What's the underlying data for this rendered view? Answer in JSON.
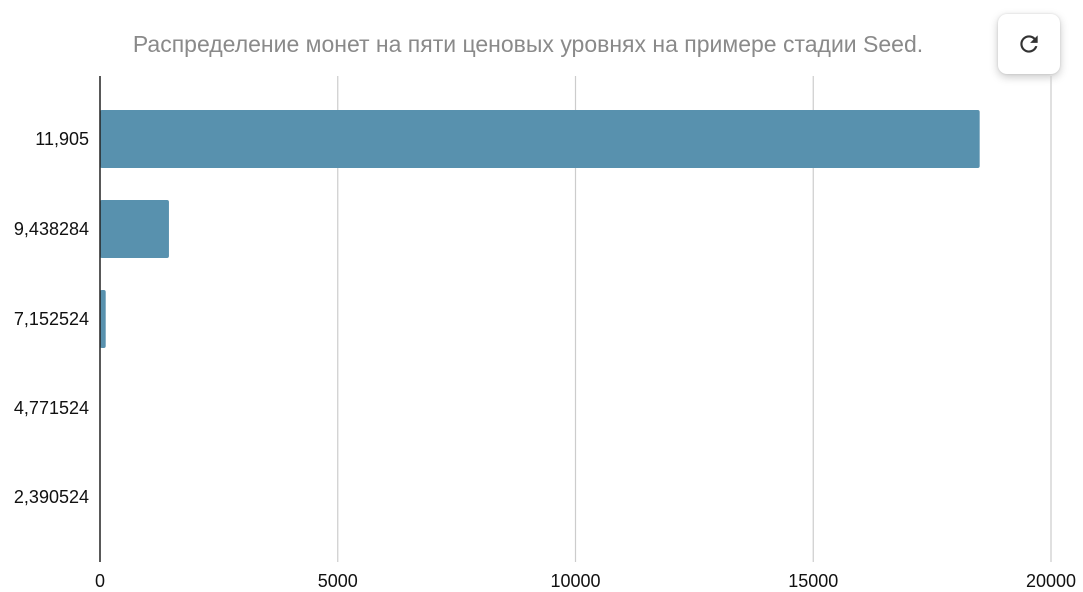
{
  "chart_data": {
    "type": "bar",
    "orientation": "horizontal",
    "title": "Распределение монет на пяти ценовых уровнях на примере стадии Seed.",
    "xlabel": "",
    "ylabel": "",
    "categories": [
      "11,905",
      "9,438284",
      "7,152524",
      "4,771524",
      "2,390524"
    ],
    "values": [
      18500,
      1450,
      120,
      0,
      0
    ],
    "xlim": [
      0,
      20000
    ],
    "xticks": [
      "0",
      "5000",
      "10000",
      "15000",
      "20000"
    ],
    "grid": "vertical",
    "bar_color": "#5891ae"
  },
  "controls": {
    "refresh_icon": "refresh-icon"
  }
}
